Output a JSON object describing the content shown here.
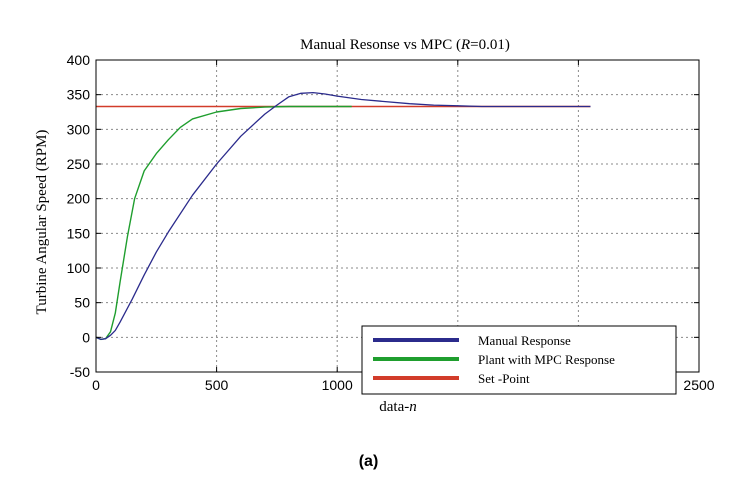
{
  "caption": "(a)",
  "chart_data": {
    "type": "line",
    "title_prefix": "Manual Resonse vs MPC (",
    "title_var": "R",
    "title_suffix": "=0.01)",
    "xlabel_text": "data-",
    "xlabel_var": "n",
    "ylabel": "Turbine Angular Speed (RPM)",
    "xlim": [
      0,
      2500
    ],
    "ylim": [
      -50,
      400
    ],
    "xticks": [
      0,
      500,
      1000,
      1500,
      2000,
      2500
    ],
    "yticks": [
      -50,
      0,
      50,
      100,
      150,
      200,
      250,
      300,
      350,
      400
    ],
    "grid": true,
    "legend_position": "bottom-right",
    "series": [
      {
        "name": "Manual Response",
        "color": "#2b2b8c",
        "x": [
          0,
          20,
          40,
          60,
          80,
          100,
          150,
          200,
          250,
          300,
          400,
          500,
          600,
          700,
          750,
          800,
          850,
          900,
          950,
          1000,
          1100,
          1200,
          1300,
          1400,
          1500,
          1600,
          1700,
          1800,
          1900,
          2000,
          2050
        ],
        "y": [
          0,
          -3,
          -2,
          3,
          10,
          22,
          55,
          90,
          123,
          152,
          205,
          250,
          290,
          322,
          335,
          347,
          352,
          353,
          351,
          348,
          343,
          340,
          337,
          335,
          334,
          333,
          333,
          333,
          333,
          333,
          333
        ]
      },
      {
        "name": "Plant with MPC Response",
        "color": "#1f9e2e",
        "x": [
          0,
          20,
          40,
          60,
          80,
          100,
          130,
          160,
          200,
          250,
          300,
          350,
          400,
          500,
          600,
          700,
          800,
          900,
          1000,
          1060
        ],
        "y": [
          0,
          -3,
          -2,
          8,
          35,
          80,
          145,
          200,
          240,
          265,
          285,
          303,
          315,
          325,
          330,
          332,
          333,
          333,
          333,
          333
        ]
      },
      {
        "name": "Set -Point",
        "color": "#d23c2a",
        "x": [
          0,
          2050
        ],
        "y": [
          333,
          333
        ]
      }
    ]
  }
}
